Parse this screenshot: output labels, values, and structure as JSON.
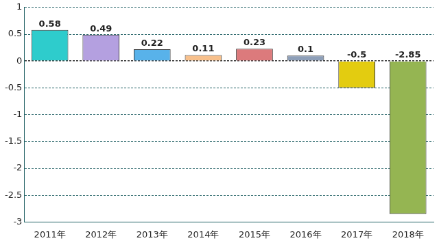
{
  "chart_data": {
    "type": "bar",
    "categories": [
      "2011年",
      "2012年",
      "2013年",
      "2014年",
      "2015年",
      "2016年",
      "2017年",
      "2018年"
    ],
    "values": [
      0.58,
      0.49,
      0.22,
      0.11,
      0.23,
      0.1,
      -0.5,
      -2.85
    ],
    "colors": [
      "#2ecccc",
      "#b4a0e0",
      "#58b2ea",
      "#f7c08c",
      "#dc7a7c",
      "#8e9fb8",
      "#e3cc10",
      "#95b552"
    ],
    "ylim": [
      -3,
      1
    ],
    "yticks": [
      -3,
      -2.5,
      -2,
      -1.5,
      -1,
      -0.5,
      0,
      0.5,
      1
    ],
    "grid": true,
    "data_labels": true
  }
}
